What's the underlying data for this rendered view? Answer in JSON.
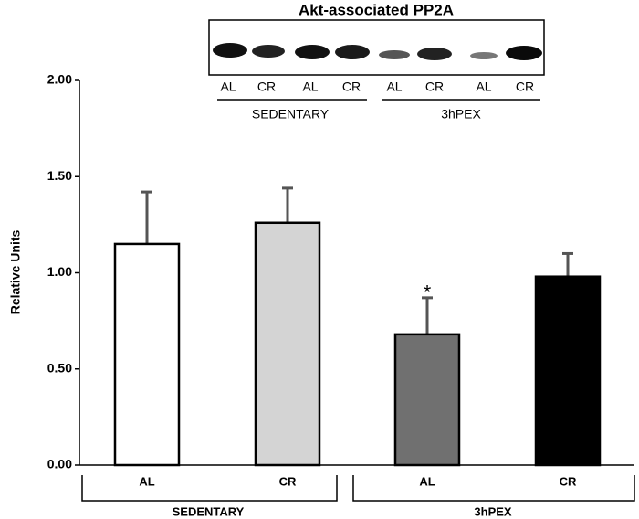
{
  "chart_data": {
    "type": "bar",
    "ylabel": "Relative  Units",
    "categories": [
      "AL",
      "CR",
      "AL",
      "CR"
    ],
    "groups": [
      "SEDENTARY",
      "3hPEX"
    ],
    "values": [
      1.15,
      1.26,
      0.68,
      0.98
    ],
    "errors": [
      0.27,
      0.18,
      0.19,
      0.12
    ],
    "colors": [
      "#ffffff",
      "#d4d4d4",
      "#707070",
      "#000000"
    ],
    "value_annotations": [
      null,
      null,
      "*",
      null
    ],
    "ylim": [
      0,
      2
    ],
    "yticks": [
      {
        "value": 0,
        "label": "0.00"
      },
      {
        "value": 0.5,
        "label": "0.50"
      },
      {
        "value": 1,
        "label": "1.00"
      },
      {
        "value": 1.5,
        "label": "1.50"
      },
      {
        "value": 2,
        "label": "2.00"
      }
    ],
    "grid": false
  },
  "blot": {
    "title": "Akt-associated PP2A",
    "lanes": [
      "AL",
      "CR",
      "AL",
      "CR",
      "AL",
      "CR",
      "AL",
      "CR"
    ],
    "groups": [
      "SEDENTARY",
      "3hPEX"
    ]
  }
}
